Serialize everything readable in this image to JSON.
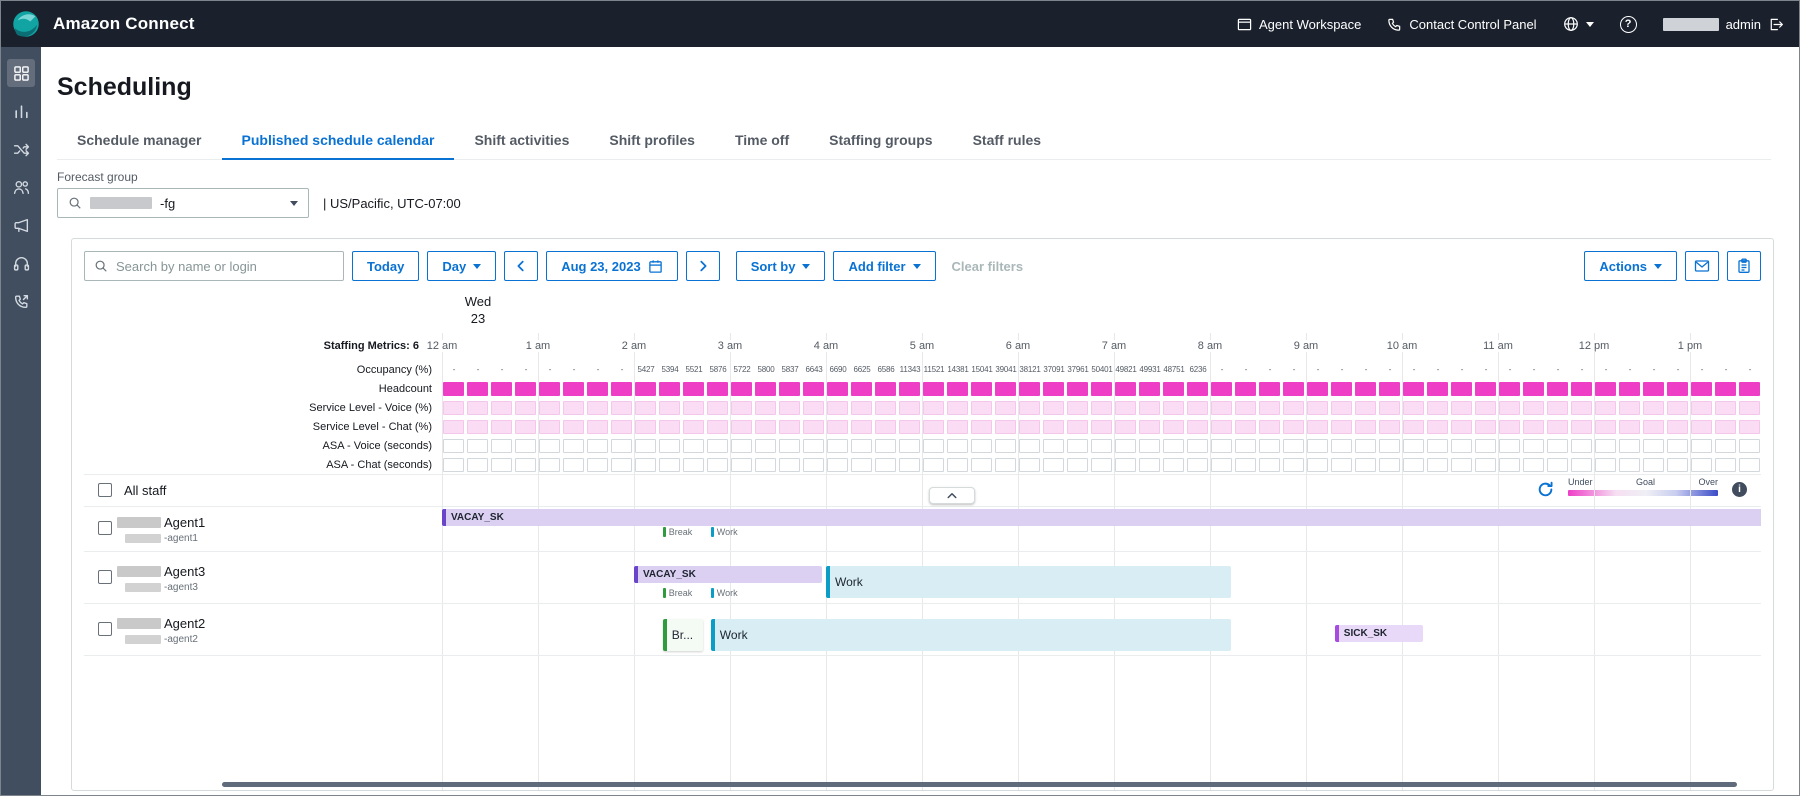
{
  "topbar": {
    "app_title": "Amazon Connect",
    "agent_workspace": "Agent Workspace",
    "contact_control_panel": "Contact Control Panel",
    "user_label": "admin"
  },
  "sidebar": {
    "icons": [
      "dashboard",
      "analytics",
      "routing",
      "users",
      "channels",
      "headset",
      "outbound-calls"
    ]
  },
  "page": {
    "title": "Scheduling"
  },
  "tabs": [
    {
      "label": "Schedule manager",
      "active": false
    },
    {
      "label": "Published schedule calendar",
      "active": true
    },
    {
      "label": "Shift activities",
      "active": false
    },
    {
      "label": "Shift profiles",
      "active": false
    },
    {
      "label": "Time off",
      "active": false
    },
    {
      "label": "Staffing groups",
      "active": false
    },
    {
      "label": "Staff rules",
      "active": false
    }
  ],
  "forecast_group": {
    "label": "Forecast group",
    "value": "-fg",
    "timezone": "| US/Pacific, UTC-07:00"
  },
  "toolbar": {
    "search_placeholder": "Search by name or login",
    "today": "Today",
    "view": "Day",
    "date": "Aug 23, 2023",
    "sort_by": "Sort by",
    "add_filter": "Add filter",
    "clear_filters": "Clear filters",
    "actions": "Actions"
  },
  "calendar": {
    "date_header": {
      "weekday": "Wed",
      "day": "23"
    },
    "staffing_metrics_label": "Staffing Metrics: 6",
    "hours": [
      "12 am",
      "1 am",
      "2 am",
      "3 am",
      "4 am",
      "5 am",
      "6 am",
      "7 am",
      "8 am",
      "9 am",
      "10 am",
      "11 am",
      "12 pm",
      "1 pm"
    ],
    "metric_rows": [
      {
        "label": "Occupancy (%)",
        "type": "text"
      },
      {
        "label": "Headcount",
        "type": "solid"
      },
      {
        "label": "Service Level - Voice (%)",
        "type": "soft"
      },
      {
        "label": "Service Level - Chat (%)",
        "type": "soft"
      },
      {
        "label": "ASA - Voice (seconds)",
        "type": "outline"
      },
      {
        "label": "ASA - Chat (seconds)",
        "type": "outline"
      }
    ],
    "occupancy_values": [
      "-",
      "-",
      "-",
      "-",
      "-",
      "-",
      "-",
      "-",
      "5427",
      "5394",
      "5521",
      "5876",
      "5722",
      "5800",
      "5837",
      "6643",
      "6690",
      "6625",
      "6586",
      "11343",
      "11521",
      "14381",
      "15041",
      "39041",
      "38121",
      "37091",
      "37961",
      "50401",
      "49821",
      "49931",
      "48751",
      "6236",
      "-",
      "-",
      "-",
      "-",
      "-",
      "-",
      "-",
      "-",
      "-",
      "-",
      "-",
      "-",
      "-",
      "-",
      "-",
      "-",
      "-",
      "-",
      "-",
      "-",
      "-",
      "-",
      "-",
      "-"
    ],
    "all_staff_label": "All staff",
    "legend": {
      "under": "Under",
      "goal": "Goal",
      "over": "Over"
    }
  },
  "agents": [
    {
      "name": "Agent1",
      "login": "-agent1",
      "bars": [
        {
          "label": "VACAY_SK",
          "kind": "vacay",
          "start": 0,
          "end": 14.3
        }
      ],
      "chips": [
        {
          "label": "Break",
          "color": "green",
          "at": 2.3
        },
        {
          "label": "Work",
          "color": "cyan",
          "at": 2.8
        }
      ]
    },
    {
      "name": "Agent3",
      "login": "-agent3",
      "bars": [
        {
          "label": "VACAY_SK",
          "kind": "vacay",
          "start": 2,
          "end": 4
        },
        {
          "label": "Work",
          "kind": "work",
          "start": 4,
          "end": 8.26
        }
      ],
      "chips": [
        {
          "label": "Break",
          "color": "green",
          "at": 2.3
        },
        {
          "label": "Work",
          "color": "cyan",
          "at": 2.8
        }
      ]
    },
    {
      "name": "Agent2",
      "login": "-agent2",
      "bars": [
        {
          "label": "Br...",
          "kind": "break",
          "start": 2.3,
          "end": 2.76
        },
        {
          "label": "Work",
          "kind": "work",
          "start": 2.8,
          "end": 8.26
        },
        {
          "label": "SICK_SK",
          "kind": "sick",
          "start": 9.3,
          "end": 10.26
        }
      ],
      "chips": []
    }
  ],
  "colors": {
    "accent": "#0972d3",
    "headcount_fill": "#ee3ec6",
    "service_level_fill": "#fbdcf5",
    "under": "#ee3ec6",
    "over": "#3b4cc8",
    "vacay": "#dcd0f2",
    "work": "#d8edf4",
    "break": "#2e9b3d",
    "sick": "#e9d9f8"
  }
}
